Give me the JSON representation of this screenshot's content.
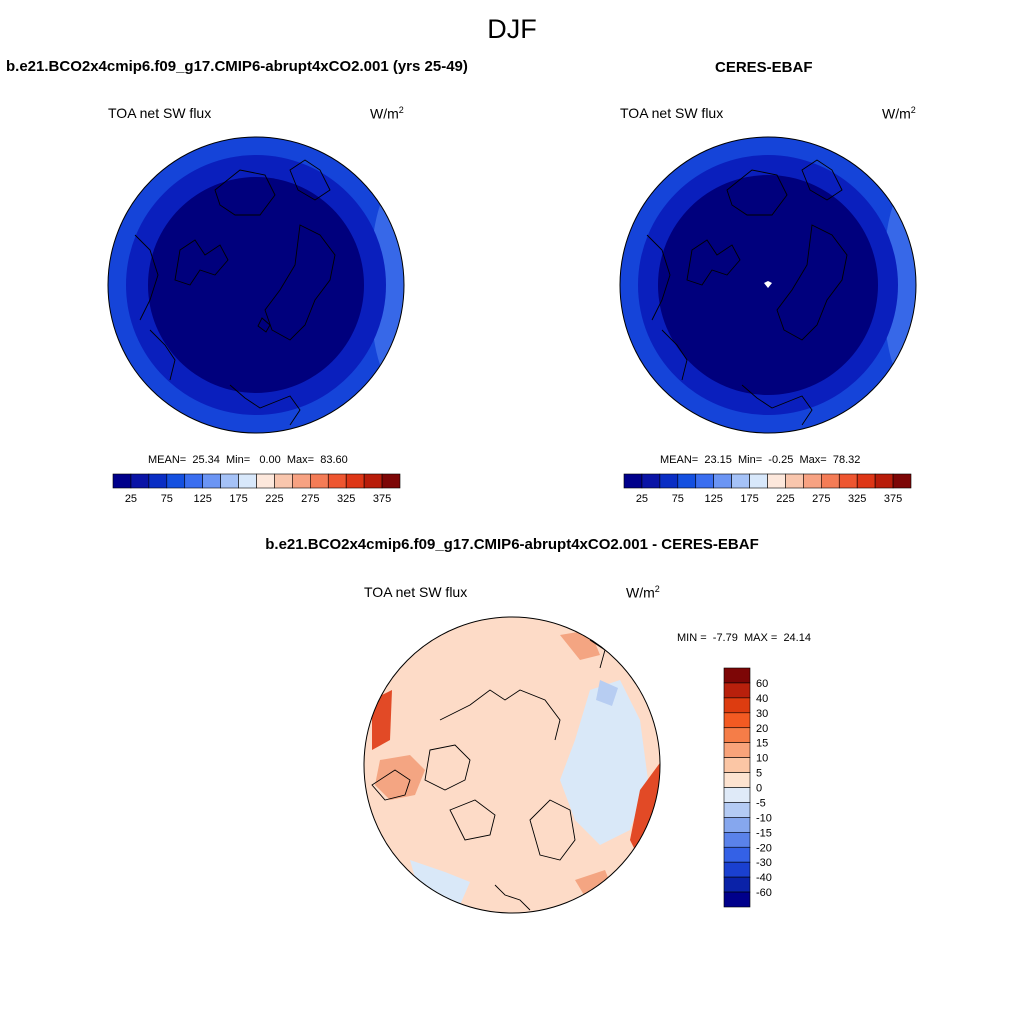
{
  "season": "DJF",
  "colors": {
    "polar": "#00007d",
    "midlat": "#0a1fbd",
    "lowlat": "#1544d9",
    "fringe": "#3768e8",
    "diff_base": "#fddbc7",
    "diff_pos_strong": "#f4a582",
    "diff_pos_max": "#e24a26",
    "diff_neg": "#d9e8f8",
    "diff_neg_mid": "#b7cdf2",
    "outline": "#000000"
  },
  "top_left": {
    "case_title": "b.e21.BCO2x4cmip6.f09_g17.CMIP6-abrupt4xCO2.001 (yrs 25-49)",
    "variable": "TOA net SW flux",
    "units_base": "W/m",
    "units_exp": "2",
    "mean_label": "MEAN=",
    "mean": "25.34",
    "min_label": "Min=",
    "min": "0.00",
    "max_label": "Max=",
    "max": "83.60"
  },
  "top_right": {
    "case_title": "CERES-EBAF",
    "variable": "TOA net SW flux",
    "units_base": "W/m",
    "units_exp": "2",
    "mean_label": "MEAN=",
    "mean": "23.15",
    "min_label": "Min=",
    "min": "-0.25",
    "max_label": "Max=",
    "max": "78.32"
  },
  "abs_colorbar": {
    "colors": [
      "#00008b",
      "#0a14a6",
      "#0a2ec4",
      "#1450e0",
      "#3a6ef0",
      "#6b95f4",
      "#a5c2f7",
      "#d8e8fb",
      "#fde8dc",
      "#f9c6ad",
      "#f7a282",
      "#f47c56",
      "#ee5630",
      "#de3616",
      "#b81c0a",
      "#7d0606"
    ],
    "labels": [
      "25",
      "75",
      "125",
      "175",
      "225",
      "275",
      "325",
      "375"
    ]
  },
  "diff": {
    "case_title": "b.e21.BCO2x4cmip6.f09_g17.CMIP6-abrupt4xCO2.001 - CERES-EBAF",
    "variable": "TOA net SW flux",
    "units_base": "W/m",
    "units_exp": "2",
    "min_label": "MIN =",
    "min": "-7.79",
    "max_label": "MAX =",
    "max": "24.14"
  },
  "diff_colorbar": {
    "colors": [
      "#7d0606",
      "#b8200c",
      "#dd3c10",
      "#f35a22",
      "#f57d48",
      "#f8a37a",
      "#fbc6a5",
      "#fde3d0",
      "#dfeaf8",
      "#b4cbf4",
      "#86a7ee",
      "#5a82ea",
      "#3461e6",
      "#1a40d0",
      "#0a22a8",
      "#00008b"
    ],
    "labels": [
      "60",
      "40",
      "30",
      "20",
      "15",
      "10",
      "5",
      "0",
      "-5",
      "-10",
      "-15",
      "-20",
      "-30",
      "-40",
      "-60"
    ]
  }
}
